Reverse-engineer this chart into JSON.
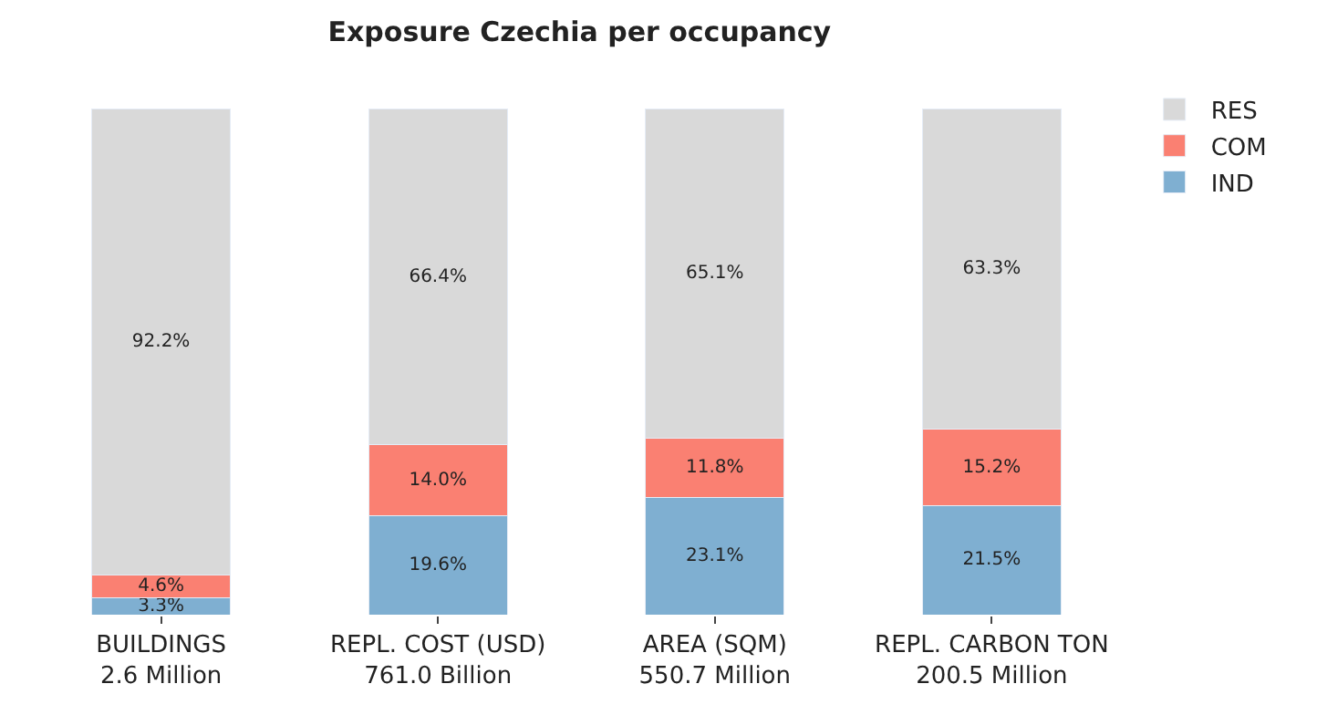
{
  "chart_data": {
    "type": "bar",
    "title": "Exposure Czechia per occupancy",
    "categories": [
      "BUILDINGS\n2.6 Million",
      "REPL. COST (USD)\n761.0 Billion",
      "AREA (SQM)\n550.7 Million",
      "REPL. CARBON TON\n200.5 Million"
    ],
    "stacked": true,
    "legend": "top right",
    "series": [
      {
        "name": "IND",
        "color": "#7fafd1",
        "values": [
          3.3,
          19.6,
          23.1,
          21.5
        ],
        "value_labels": [
          "3.3%",
          "19.6%",
          "23.1%",
          "21.5%"
        ]
      },
      {
        "name": "COM",
        "color": "#fa8072",
        "values": [
          4.6,
          14.0,
          11.8,
          15.2
        ],
        "value_labels": [
          "4.6%",
          "14.0%",
          "11.8%",
          "15.2%"
        ]
      },
      {
        "name": "RES",
        "color": "#d9d9d9",
        "values": [
          92.2,
          66.4,
          65.1,
          63.3
        ],
        "value_labels": [
          "92.2%",
          "66.4%",
          "65.1%",
          "63.3%"
        ]
      }
    ]
  }
}
